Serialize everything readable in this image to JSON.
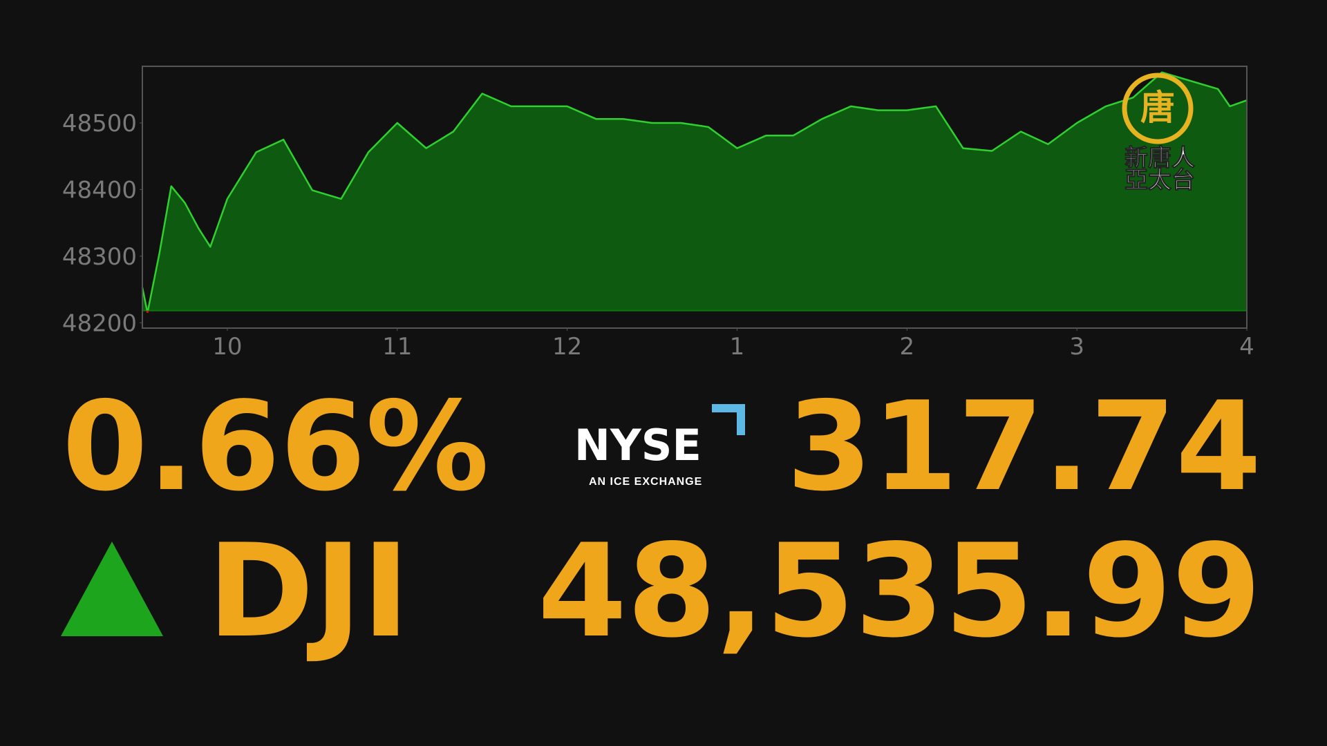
{
  "chart_data": {
    "type": "area",
    "x": [
      9.5,
      9.53,
      9.6,
      9.67,
      9.75,
      9.83,
      9.9,
      10,
      10.17,
      10.33,
      10.5,
      10.67,
      10.83,
      11,
      11.17,
      11.33,
      11.5,
      11.67,
      11.83,
      12,
      12.17,
      12.33,
      12.5,
      12.67,
      12.83,
      13,
      13.17,
      13.33,
      13.5,
      13.67,
      13.83,
      14,
      14.17,
      14.33,
      14.5,
      14.67,
      14.83,
      15,
      15.17,
      15.33,
      15.5,
      15.67,
      15.83,
      15.9,
      16
    ],
    "values": [
      48253,
      48215,
      48304,
      48405,
      48380,
      48342,
      48314,
      48386,
      48456,
      48475,
      48399,
      48386,
      48456,
      48500,
      48462,
      48487,
      48544,
      48525,
      48525,
      48525,
      48506,
      48506,
      48500,
      48500,
      48494,
      48462,
      48481,
      48481,
      48506,
      48525,
      48519,
      48519,
      48525,
      48462,
      48458,
      48487,
      48468,
      48500,
      48525,
      48538,
      48576,
      48563,
      48551,
      48525,
      48534
    ],
    "color": "#2fd12f",
    "fill_color": "#0e5a10",
    "below_color": "#d01010",
    "baseline": 48218.25,
    "xlim": [
      9.5,
      16
    ],
    "ylim": [
      48192,
      48585
    ],
    "xticks": [
      10,
      11,
      12,
      {
        "value": 13,
        "label": "1"
      },
      {
        "value": 14,
        "label": "2"
      },
      {
        "value": 15,
        "label": "3"
      },
      {
        "value": 16,
        "label": "4"
      }
    ],
    "yticks": [
      48200,
      48300,
      48400,
      48500
    ],
    "change_percent": "0.66%",
    "symbol": "DJI",
    "change": "317.74",
    "price": "48,535.99",
    "accent_color": "#efa61b",
    "up_color": "#1ea51e"
  },
  "logo": {
    "name": "NYSE",
    "tagline": "AN ICE EXCHANGE"
  },
  "watermark": {
    "emblem": "唐",
    "line1": "新唐人",
    "line2": "亞太台"
  }
}
